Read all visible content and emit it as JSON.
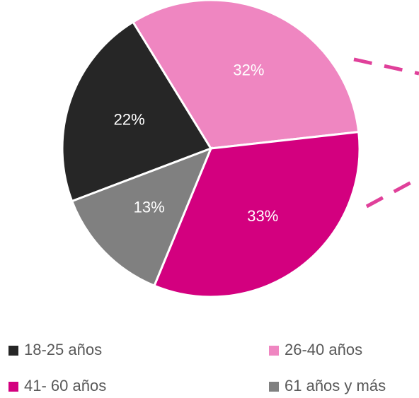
{
  "chart_data": {
    "type": "pie",
    "categories": [
      "18-25 años",
      "26-40 años",
      "41- 60 años",
      "61 años y más"
    ],
    "values": [
      22,
      32,
      33,
      13
    ],
    "value_labels": [
      "22%",
      "32%",
      "33%",
      "13%"
    ],
    "colors": [
      "#262626",
      "#ef86c1",
      "#d3007f",
      "#808080"
    ],
    "legend": "bottom"
  }
}
